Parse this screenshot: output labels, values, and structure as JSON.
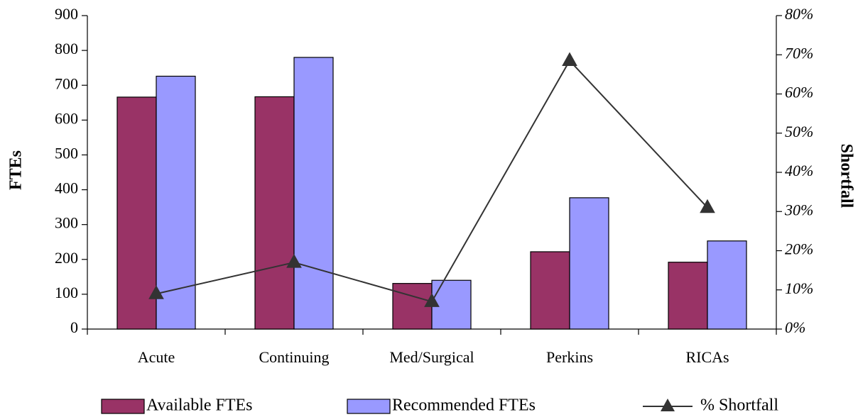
{
  "chart_data": {
    "type": "bar",
    "categories": [
      "Acute",
      "Continuing",
      "Med/Surgical",
      "Perkins",
      "RICAs"
    ],
    "series": [
      {
        "name": "Available FTEs",
        "kind": "bar",
        "axis": "left",
        "color": "#993366",
        "values": [
          666,
          667,
          131,
          222,
          192
        ]
      },
      {
        "name": "Recommended FTEs",
        "kind": "bar",
        "axis": "left",
        "color": "#9999ff",
        "values": [
          726,
          780,
          140,
          377,
          253
        ]
      },
      {
        "name": "% Shortfall",
        "kind": "line",
        "axis": "right",
        "color": "#333333",
        "marker": "triangle",
        "values": [
          0.09,
          0.17,
          0.07,
          0.685,
          0.31
        ]
      }
    ],
    "ylabel": "FTEs",
    "y2label": "Shortfall",
    "ylim": [
      0,
      900
    ],
    "y2lim": [
      0,
      0.8
    ],
    "yticks": [
      "0",
      "100",
      "200",
      "300",
      "400",
      "500",
      "600",
      "700",
      "800",
      "900"
    ],
    "y2ticks": [
      "0%",
      "10%",
      "20%",
      "30%",
      "40%",
      "50%",
      "60%",
      "70%",
      "80%"
    ],
    "grid": false,
    "legend_position": "bottom"
  }
}
